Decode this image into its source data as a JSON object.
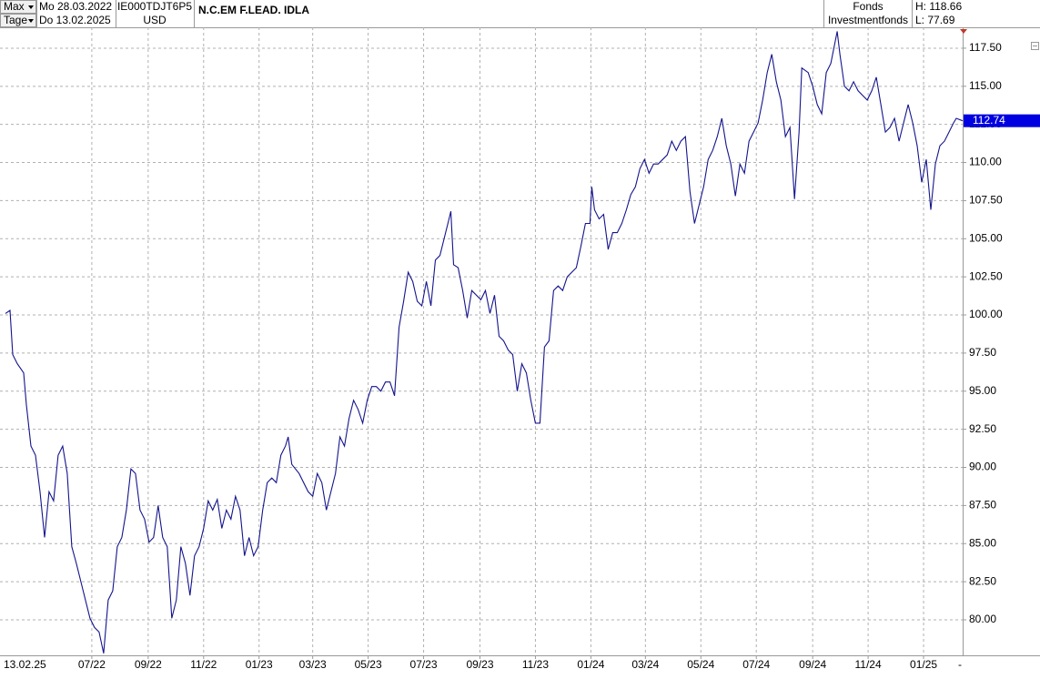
{
  "header": {
    "range": "Max",
    "unit": "Tage",
    "from": "Mo 28.03.2022",
    "to": "Do 13.02.2025",
    "isin": "IE000TDJT6P5",
    "currency": "USD",
    "name": "N.C.EM F.LEAD. IDLA",
    "kind": "Fonds",
    "category": "Investmentfonds",
    "high": "H: 118.66",
    "low": "L: 77.69"
  },
  "chart_data": {
    "type": "line",
    "start_label": "13.02.25",
    "end_label": "-",
    "x": [
      0,
      5,
      8,
      13,
      20,
      23,
      28,
      33,
      38,
      43,
      48,
      53,
      58,
      63,
      68,
      73,
      78,
      83,
      88,
      93,
      98,
      103,
      108,
      113,
      118,
      123,
      128,
      133,
      138,
      143,
      148,
      153,
      158,
      163,
      168,
      173,
      178,
      183,
      188,
      193,
      198,
      203,
      208,
      213,
      218,
      223,
      228,
      233,
      238,
      243,
      248,
      253,
      258,
      263,
      268,
      273,
      278,
      283,
      288,
      293,
      298,
      303,
      308,
      311,
      315,
      323,
      333,
      338,
      343,
      348,
      353,
      358,
      363,
      368,
      373,
      378,
      383,
      388,
      393,
      398,
      403,
      408,
      413,
      418,
      423,
      428,
      433,
      438,
      443,
      448,
      453,
      458,
      463,
      468,
      473,
      478,
      483,
      488,
      490,
      493,
      498,
      503,
      508,
      513,
      518,
      523,
      528,
      533,
      538,
      543,
      548,
      553,
      558,
      563,
      568,
      573,
      578,
      583,
      588,
      593,
      598,
      603,
      608,
      613,
      618,
      623,
      628,
      633,
      638,
      643,
      645,
      648,
      653,
      658,
      663,
      668,
      673,
      678,
      683,
      688,
      693,
      698,
      703,
      708,
      713,
      718,
      723,
      728,
      733,
      738,
      743,
      748,
      753,
      758,
      763,
      768,
      773,
      778,
      783,
      788,
      793,
      798,
      803,
      808,
      813,
      818,
      823,
      828,
      833,
      838,
      843,
      848,
      853,
      858,
      863,
      868,
      873,
      876,
      883,
      888,
      893,
      898,
      903,
      908,
      913,
      915,
      918,
      923,
      928,
      933,
      938,
      943,
      948,
      953,
      958,
      963,
      968,
      973,
      978,
      983,
      988,
      993,
      998,
      1003,
      1008,
      1013,
      1018,
      1023,
      1028,
      1033,
      1038,
      1043,
      1046,
      1053
    ],
    "series": [
      {
        "name": "N.C.EM F.LEAD. IDLA",
        "color": "#14148c",
        "values": [
          100.1,
          100.3,
          97.4,
          96.8,
          96.2,
          94.1,
          91.4,
          90.8,
          88.4,
          85.4,
          88.4,
          87.8,
          90.8,
          91.4,
          89.6,
          84.8,
          83.7,
          82.5,
          81.3,
          80.1,
          79.5,
          79.2,
          77.8,
          81.3,
          81.9,
          84.8,
          85.4,
          87.2,
          89.9,
          89.6,
          87.2,
          86.6,
          85.1,
          85.4,
          87.5,
          85.4,
          84.8,
          80.1,
          81.3,
          84.8,
          83.7,
          81.6,
          84.2,
          84.8,
          86,
          87.8,
          87.2,
          87.9,
          86,
          87.2,
          86.6,
          88.1,
          87.2,
          84.2,
          85.4,
          84.2,
          84.8,
          87.2,
          89,
          89.3,
          89,
          90.8,
          91.4,
          92,
          90.2,
          89.6,
          88.4,
          88.1,
          89.6,
          89,
          87.2,
          88.4,
          89.6,
          92,
          91.4,
          93.2,
          94.4,
          93.8,
          92.9,
          94.4,
          95.3,
          95.3,
          95,
          95.6,
          95.6,
          94.7,
          99.2,
          100.9,
          102.8,
          102.2,
          100.9,
          100.6,
          102.2,
          100.6,
          103.6,
          103.9,
          105.1,
          106.3,
          106.8,
          103.3,
          103.1,
          101.6,
          99.8,
          101.6,
          101.3,
          101,
          101.6,
          100.1,
          101.3,
          98.6,
          98.3,
          97.7,
          97.4,
          95,
          96.8,
          96.2,
          94.4,
          92.9,
          92.9,
          97.9,
          98.3,
          101.6,
          101.9,
          101.6,
          102.5,
          102.8,
          103.1,
          104.5,
          106,
          106,
          108.4,
          106.9,
          106.3,
          106.6,
          104.3,
          105.4,
          105.4,
          106,
          106.9,
          107.9,
          108.4,
          109.6,
          110.2,
          109.3,
          109.9,
          109.9,
          110.2,
          110.5,
          111.4,
          110.8,
          111.4,
          111.7,
          108.1,
          106,
          107.2,
          108.4,
          110.2,
          110.8,
          111.7,
          112.9,
          111.1,
          109.9,
          107.8,
          109.9,
          109.3,
          111.4,
          112,
          112.6,
          114.1,
          115.9,
          117.1,
          115.3,
          114.1,
          111.7,
          112.3,
          107.6,
          112,
          116.2,
          115.9,
          115,
          113.8,
          113.2,
          115.9,
          116.5,
          118,
          118.6,
          117.1,
          115,
          114.7,
          115.3,
          114.7,
          114.4,
          114.1,
          114.7,
          115.6,
          113.8,
          112,
          112.3,
          112.9,
          111.4,
          112.6,
          113.8,
          112.6,
          111.1,
          108.7,
          110.2,
          106.9,
          109.9,
          111.1,
          111.4,
          112,
          112.6,
          112.9,
          112.74
        ]
      }
    ],
    "xlim": [
      -6,
      1055
    ],
    "xticks": [
      {
        "value": 95,
        "label": "07/22"
      },
      {
        "value": 157,
        "label": "09/22"
      },
      {
        "value": 218,
        "label": "11/22"
      },
      {
        "value": 279,
        "label": "01/23"
      },
      {
        "value": 338,
        "label": "03/23"
      },
      {
        "value": 399,
        "label": "05/23"
      },
      {
        "value": 460,
        "label": "07/23"
      },
      {
        "value": 522,
        "label": "09/23"
      },
      {
        "value": 583,
        "label": "11/23"
      },
      {
        "value": 644,
        "label": "01/24"
      },
      {
        "value": 704,
        "label": "03/24"
      },
      {
        "value": 765,
        "label": "05/24"
      },
      {
        "value": 826,
        "label": "07/24"
      },
      {
        "value": 888,
        "label": "09/24"
      },
      {
        "value": 949,
        "label": "11/24"
      },
      {
        "value": 1010,
        "label": "01/25"
      }
    ],
    "ylim": [
      77.67,
      118.87
    ],
    "yticks": [
      {
        "value": 80,
        "label": "80.00"
      },
      {
        "value": 82.5,
        "label": "82.50"
      },
      {
        "value": 85,
        "label": "85.00"
      },
      {
        "value": 87.5,
        "label": "87.50"
      },
      {
        "value": 90,
        "label": "90.00"
      },
      {
        "value": 92.5,
        "label": "92.50"
      },
      {
        "value": 95,
        "label": "95.00"
      },
      {
        "value": 97.5,
        "label": "97.50"
      },
      {
        "value": 100,
        "label": "100.00"
      },
      {
        "value": 102.5,
        "label": "102.50"
      },
      {
        "value": 105,
        "label": "105.00"
      },
      {
        "value": 107.5,
        "label": "107.50"
      },
      {
        "value": 110,
        "label": "110.00"
      },
      {
        "value": 112.5,
        "label": "112.50"
      },
      {
        "value": 115,
        "label": "115.00"
      },
      {
        "value": 117.5,
        "label": "117.50"
      }
    ],
    "grid": true
  }
}
